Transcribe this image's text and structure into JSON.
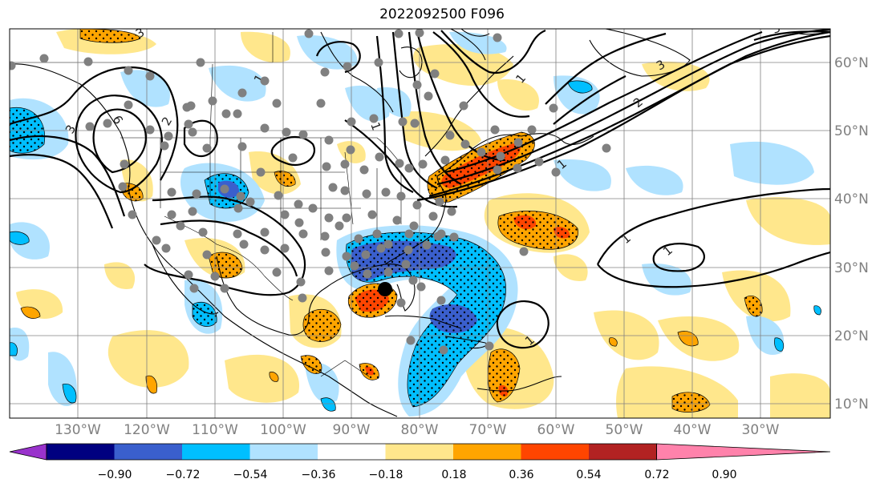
{
  "title": "2022092500 F096",
  "lon_labels": [
    "130°W",
    "120°W",
    "110°W",
    "100°W",
    "90°W",
    "80°W",
    "70°W",
    "60°W",
    "50°W",
    "40°W",
    "30°W"
  ],
  "lat_labels": [
    "60°N",
    "50°N",
    "40°N",
    "30°N",
    "20°N",
    "10°N"
  ],
  "colorbar": {
    "colors": [
      "#9932cc",
      "#000080",
      "#3a5fcd",
      "#00bfff",
      "#b0e2ff",
      "#ffffff",
      "#ffe78c",
      "#ffa500",
      "#ff4500",
      "#b22222",
      "#ff82ab"
    ],
    "tick_labels": [
      "−0.90",
      "−0.72",
      "−0.54",
      "−0.36",
      "−0.18",
      "0.18",
      "0.36",
      "0.54",
      "0.72",
      "0.90"
    ]
  },
  "contour_labels": [
    "3",
    "3",
    "2",
    "1",
    "1",
    "1",
    "1",
    "1",
    "1",
    "1",
    "2",
    "3",
    "3",
    "6"
  ],
  "colors": {
    "land": "#000000",
    "grid": "#808080",
    "markers": "#808080",
    "storm": "#000000"
  }
}
